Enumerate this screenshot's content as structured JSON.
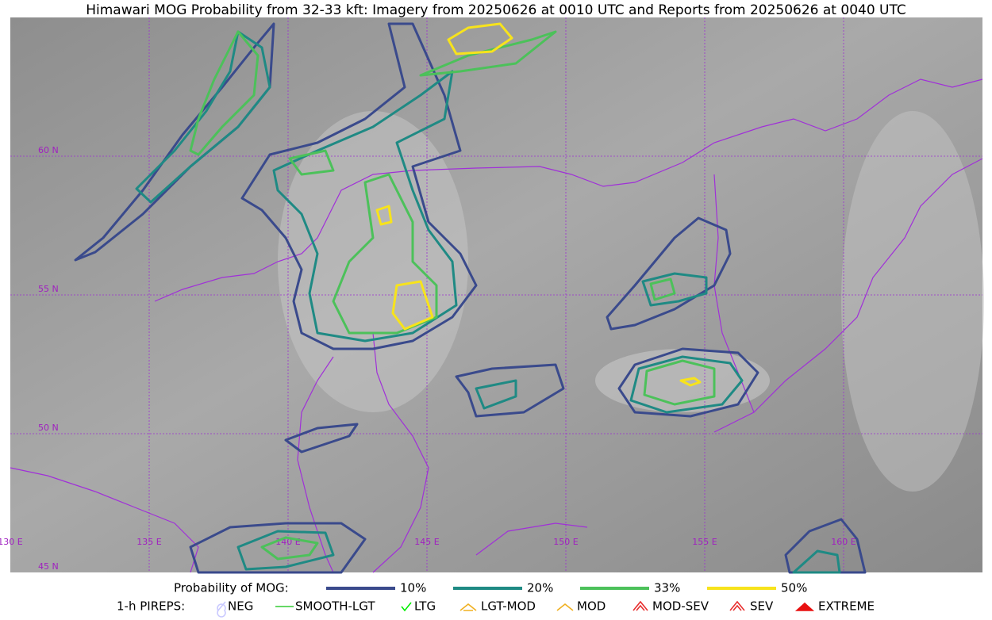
{
  "title": "Himawari MOG Probability from 32-33 kft: Imagery from 20250626 at 0010 UTC and Reports from 20250626 at 0040 UTC",
  "map": {
    "lat_labels": [
      "60 N",
      "55 N",
      "50 N",
      "45 N"
    ],
    "lon_labels": [
      "130 E",
      "135 E",
      "140 E",
      "145 E",
      "150 E",
      "155 E",
      "160 E"
    ]
  },
  "probability_legend": {
    "title": "Probability of MOG:",
    "levels": [
      {
        "label": "10%",
        "color": "#3a4a8c"
      },
      {
        "label": "20%",
        "color": "#1f8a84"
      },
      {
        "label": "33%",
        "color": "#4cc15a"
      },
      {
        "label": "50%",
        "color": "#f7e31c"
      }
    ]
  },
  "pirep_legend": {
    "title": "1-h PIREPS:",
    "items": [
      {
        "label": "NEG",
        "color": "#c8c8ff"
      },
      {
        "label": "SMOOTH-LGT",
        "color": "#33cc33"
      },
      {
        "label": "LTG",
        "color": "#00ee00"
      },
      {
        "label": "LGT-MOD",
        "color": "#f0b020"
      },
      {
        "label": "MOD",
        "color": "#f0b020"
      },
      {
        "label": "MOD-SEV",
        "color": "#e83030"
      },
      {
        "label": "SEV",
        "color": "#e83030"
      },
      {
        "label": "EXTREME",
        "color": "#e81010"
      }
    ]
  }
}
